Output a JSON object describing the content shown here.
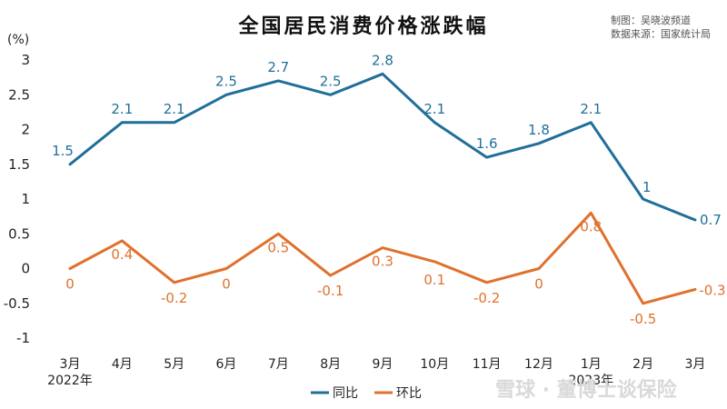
{
  "chart_data": {
    "type": "line",
    "title": "全国居民消费价格涨跌幅",
    "source_lines": [
      "制图：吴晓波频道",
      "数据来源：国家统计局"
    ],
    "unit": "(%)",
    "categories": [
      "3月",
      "4月",
      "5月",
      "6月",
      "7月",
      "8月",
      "9月",
      "10月",
      "11月",
      "12月",
      "1月",
      "2月",
      "3月"
    ],
    "year_labels": [
      {
        "index": 0,
        "text": "2022年"
      },
      {
        "index": 10,
        "text": "2023年"
      }
    ],
    "ylim": [
      -1,
      3
    ],
    "yticks": [
      3,
      2.5,
      2,
      1.5,
      1,
      0.5,
      0,
      -0.5,
      -1
    ],
    "ytick_labels": [
      "3",
      "2.5",
      "2",
      "1.5",
      "1",
      "0.5",
      "0",
      "-0.5",
      "-1"
    ],
    "grid": false,
    "legend_position": "bottom",
    "series": [
      {
        "name": "同比",
        "color": "#1f6f9a",
        "values": [
          1.5,
          2.1,
          2.1,
          2.5,
          2.7,
          2.5,
          2.8,
          2.1,
          1.6,
          1.8,
          2.1,
          1,
          0.7
        ],
        "labels": [
          "1.5",
          "2.1",
          "2.1",
          "2.5",
          "2.7",
          "2.5",
          "2.8",
          "2.1",
          "1.6",
          "1.8",
          "2.1",
          "1",
          "0.7"
        ]
      },
      {
        "name": "环比",
        "color": "#e0712c",
        "values": [
          0,
          0.4,
          -0.2,
          0,
          0.5,
          -0.1,
          0.3,
          0.1,
          -0.2,
          0,
          0.8,
          -0.5,
          -0.3
        ],
        "labels": [
          "0",
          "0.4",
          "-0.2",
          "0",
          "0.5",
          "-0.1",
          "0.3",
          "0.1",
          "-0.2",
          "0",
          "0.8",
          "-0.5",
          "-0.3"
        ]
      }
    ],
    "watermark": "雪球 · 董博士谈保险"
  }
}
